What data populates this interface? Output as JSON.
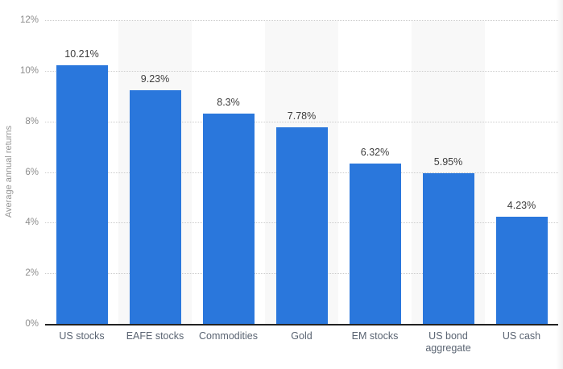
{
  "chart_data": {
    "type": "bar",
    "categories": [
      "US stocks",
      "EAFE stocks",
      "Commodities",
      "Gold",
      "EM stocks",
      "US bond aggregate",
      "US cash"
    ],
    "values": [
      10.21,
      9.23,
      8.3,
      7.78,
      6.32,
      5.95,
      4.23
    ],
    "value_labels": [
      "10.21%",
      "9.23%",
      "8.3%",
      "7.78%",
      "6.32%",
      "5.95%",
      "4.23%"
    ],
    "title": "",
    "xlabel": "",
    "ylabel": "Average annual returns",
    "ylim": [
      0,
      12
    ],
    "yticks": [
      0,
      2,
      4,
      6,
      8,
      10,
      12
    ],
    "ytick_labels": [
      "0%",
      "2%",
      "4%",
      "6%",
      "8%",
      "10%",
      "12%"
    ],
    "grid": "horizontal-dotted",
    "legend": "none",
    "plot_background": "alternating-column-bands",
    "colors": {
      "bar": "#2a77dc",
      "band": "#f8f8f8",
      "gridline": "#cccccc",
      "axis_line": "#222222",
      "ytick_label": "#8c8c8c",
      "category_label": "#5a6472",
      "value_label": "#3d3d3d",
      "y_axis_title": "#949494",
      "background": "#ffffff"
    }
  }
}
